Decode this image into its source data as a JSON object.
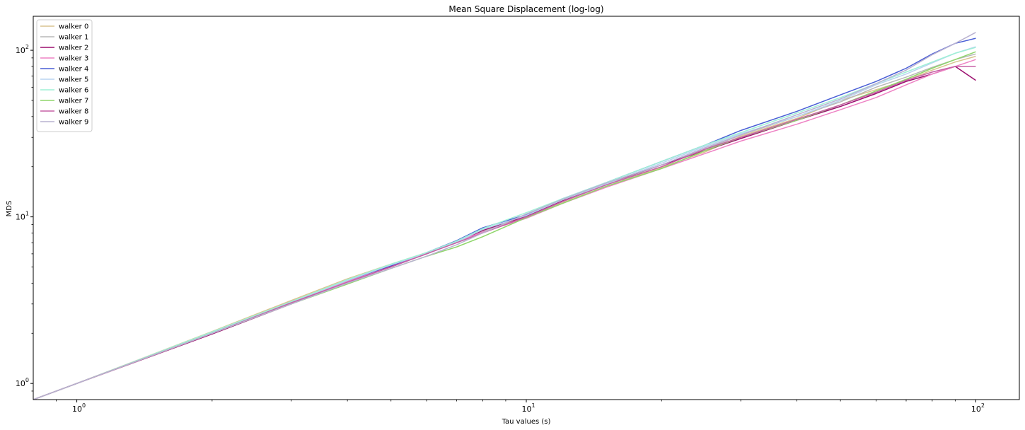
{
  "chart_data": {
    "type": "line",
    "title": "Mean Square Displacement (log-log)",
    "xlabel": "Tau values (s)",
    "ylabel": "MDS",
    "xscale": "log",
    "yscale": "log",
    "xlim": [
      0.8,
      125
    ],
    "ylim": [
      0.8,
      160
    ],
    "x_major_ticks": [
      {
        "value": 1,
        "base": "10",
        "exp": "0"
      },
      {
        "value": 10,
        "base": "10",
        "exp": "1"
      },
      {
        "value": 100,
        "base": "10",
        "exp": "2"
      }
    ],
    "y_major_ticks": [
      {
        "value": 1,
        "base": "10",
        "exp": "0"
      },
      {
        "value": 10,
        "base": "10",
        "exp": "1"
      },
      {
        "value": 100,
        "base": "10",
        "exp": "2"
      }
    ],
    "grid": false,
    "legend_position": "top-left",
    "x": [
      0.8,
      1,
      2,
      3,
      4,
      5,
      6,
      7,
      8,
      10,
      12,
      15,
      20,
      25,
      30,
      40,
      50,
      60,
      70,
      80,
      90,
      100
    ],
    "series": [
      {
        "name": "walker 0",
        "color": "#d9c48f",
        "values": [
          0.8,
          1.0,
          2.05,
          3.15,
          4.25,
          5.2,
          6.1,
          7.0,
          8.1,
          10.0,
          12.1,
          15.2,
          19.8,
          24.5,
          30.5,
          39.0,
          50.0,
          58.0,
          66.0,
          76.0,
          85.0,
          92.0
        ]
      },
      {
        "name": "walker 1",
        "color": "#b8b8b8",
        "values": [
          0.8,
          1.0,
          2.0,
          3.1,
          4.1,
          5.1,
          6.0,
          7.1,
          8.2,
          10.3,
          12.4,
          15.5,
          20.5,
          25.5,
          31.0,
          40.0,
          49.0,
          60.0,
          69.0,
          79.0,
          88.0,
          95.0
        ]
      },
      {
        "name": "walker 2",
        "color": "#9b0e6e",
        "values": [
          0.8,
          1.0,
          1.98,
          3.0,
          4.05,
          5.05,
          6.0,
          7.05,
          8.3,
          10.1,
          12.5,
          15.8,
          20.5,
          25.0,
          29.5,
          38.0,
          46.0,
          55.0,
          65.0,
          72.0,
          80.0,
          66.0
        ]
      },
      {
        "name": "walker 3",
        "color": "#ee82c4",
        "values": [
          0.8,
          1.0,
          2.0,
          3.05,
          4.1,
          5.0,
          6.05,
          7.1,
          8.1,
          9.8,
          12.0,
          15.0,
          19.5,
          24.0,
          28.5,
          36.0,
          44.0,
          52.0,
          62.0,
          72.0,
          80.0,
          88.0
        ]
      },
      {
        "name": "walker 4",
        "color": "#4a5fd6",
        "values": [
          0.8,
          1.0,
          2.02,
          3.1,
          4.15,
          5.1,
          6.1,
          7.2,
          8.6,
          10.3,
          12.8,
          16.0,
          21.5,
          27.0,
          33.0,
          43.0,
          54.0,
          65.0,
          78.0,
          95.0,
          110.0,
          118.0
        ]
      },
      {
        "name": "walker 5",
        "color": "#b9d3f0",
        "values": [
          0.8,
          1.0,
          2.03,
          3.08,
          4.15,
          5.15,
          6.05,
          7.05,
          8.4,
          10.2,
          12.6,
          15.7,
          21.0,
          26.5,
          31.5,
          40.0,
          50.0,
          62.0,
          72.0,
          84.0,
          96.0,
          105.0
        ]
      },
      {
        "name": "walker 6",
        "color": "#9ff0d6",
        "values": [
          0.8,
          1.0,
          2.04,
          3.1,
          4.2,
          5.2,
          6.1,
          7.15,
          8.5,
          10.6,
          12.8,
          16.0,
          21.5,
          27.0,
          32.0,
          42.0,
          52.0,
          63.0,
          74.0,
          85.0,
          96.0,
          104.0
        ]
      },
      {
        "name": "walker 7",
        "color": "#8fd66a",
        "values": [
          0.8,
          1.0,
          2.0,
          3.0,
          3.95,
          4.9,
          5.8,
          6.6,
          7.6,
          9.9,
          12.0,
          15.2,
          19.5,
          25.0,
          30.0,
          38.0,
          47.0,
          57.0,
          67.0,
          78.0,
          88.0,
          98.0
        ]
      },
      {
        "name": "walker 8",
        "color": "#c660a6",
        "values": [
          0.8,
          1.0,
          2.0,
          3.05,
          4.05,
          5.0,
          6.0,
          7.0,
          8.0,
          10.0,
          12.3,
          15.5,
          20.0,
          25.5,
          30.0,
          38.5,
          47.0,
          56.0,
          66.0,
          74.0,
          80.0,
          80.0
        ]
      },
      {
        "name": "walker 9",
        "color": "#b9b2d1",
        "values": [
          0.8,
          1.0,
          2.0,
          3.0,
          4.0,
          4.9,
          5.8,
          6.8,
          8.0,
          10.4,
          12.7,
          15.9,
          20.5,
          26.0,
          31.0,
          41.0,
          51.0,
          63.0,
          76.0,
          94.0,
          110.0,
          128.0
        ]
      }
    ]
  }
}
